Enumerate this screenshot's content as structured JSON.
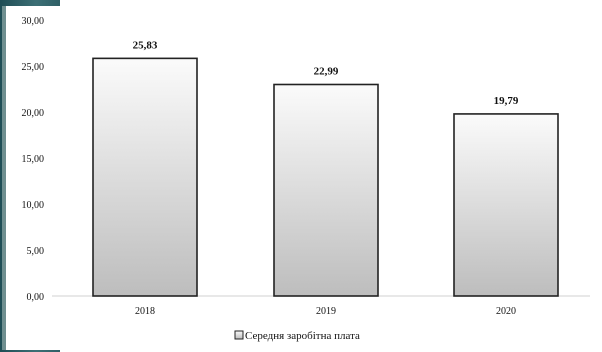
{
  "chart_data": {
    "type": "bar",
    "categories": [
      "2018",
      "2019",
      "2020"
    ],
    "series": [
      {
        "name": "Середня заробітна плата",
        "values": [
          25.83,
          22.99,
          19.79
        ],
        "data_labels": [
          "25,83",
          "22,99",
          "19,79"
        ]
      }
    ],
    "y_ticks": [
      "0,00",
      "5,00",
      "10,00",
      "15,00",
      "20,00",
      "25,00",
      "30,00"
    ],
    "ylim": [
      0,
      30
    ],
    "grid": false,
    "legend_position": "bottom",
    "colors": {
      "bar_top": "#fbfbfb",
      "bar_bottom": "#bdbdbd",
      "bar_stroke": "#222222",
      "axis": "#d0d0d0",
      "text": "#111111"
    }
  }
}
